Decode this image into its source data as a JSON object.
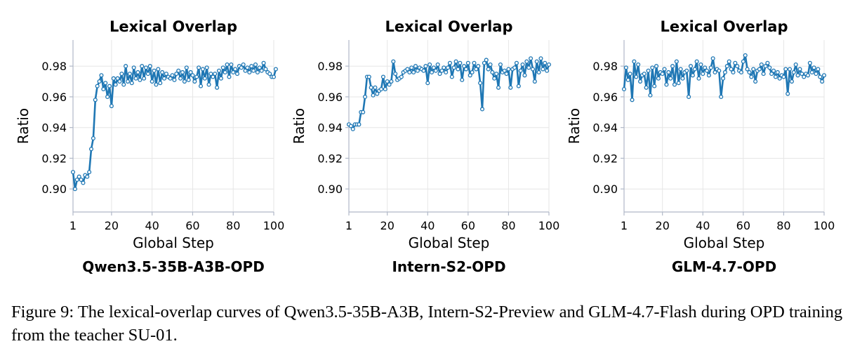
{
  "figure": {
    "caption": "Figure 9: The lexical-overlap curves of Qwen3.5-35B-A3B, Intern-S2-Preview and GLM-4.7-Flash during OPD training from the teacher SU-01."
  },
  "colors": {
    "line": "#1f77b4",
    "grid": "#e6e6e6",
    "spine": "#b0b8c8"
  },
  "chart_data": [
    {
      "type": "line",
      "title": "Lexical Overlap",
      "model_label": "Qwen3.5-35B-A3B-OPD",
      "xlabel": "Global Step",
      "ylabel": "Ratio",
      "xlim": [
        1,
        100
      ],
      "ylim": [
        0.885,
        0.997
      ],
      "xticks": [
        1,
        20,
        40,
        60,
        80,
        100
      ],
      "yticks": [
        0.9,
        0.92,
        0.94,
        0.96,
        0.98
      ],
      "grid": true,
      "marker": "circle",
      "series": [
        {
          "values": [
            0.911,
            0.9,
            0.906,
            0.908,
            0.906,
            0.904,
            0.909,
            0.908,
            0.911,
            0.926,
            0.933,
            0.958,
            0.967,
            0.97,
            0.974,
            0.965,
            0.969,
            0.96,
            0.967,
            0.954,
            0.972,
            0.968,
            0.972,
            0.97,
            0.975,
            0.968,
            0.98,
            0.97,
            0.975,
            0.969,
            0.979,
            0.972,
            0.976,
            0.971,
            0.98,
            0.972,
            0.979,
            0.975,
            0.98,
            0.97,
            0.977,
            0.968,
            0.978,
            0.969,
            0.976,
            0.972,
            0.975,
            0.973,
            0.972,
            0.974,
            0.971,
            0.975,
            0.977,
            0.972,
            0.976,
            0.97,
            0.979,
            0.971,
            0.976,
            0.974,
            0.97,
            0.973,
            0.979,
            0.967,
            0.978,
            0.972,
            0.979,
            0.968,
            0.975,
            0.973,
            0.975,
            0.966,
            0.977,
            0.972,
            0.979,
            0.976,
            0.981,
            0.973,
            0.981,
            0.976,
            0.978,
            0.975,
            0.98,
            0.979,
            0.981,
            0.977,
            0.979,
            0.976,
            0.98,
            0.977,
            0.981,
            0.976,
            0.979,
            0.977,
            0.982,
            0.978,
            0.976,
            0.975,
            0.973,
            0.973,
            0.978
          ]
        }
      ]
    },
    {
      "type": "line",
      "title": "Lexical Overlap",
      "model_label": "Intern-S2-OPD",
      "xlabel": "Global Step",
      "ylabel": "Ratio",
      "xlim": [
        1,
        100
      ],
      "ylim": [
        0.885,
        0.997
      ],
      "xticks": [
        1,
        20,
        40,
        60,
        80,
        100
      ],
      "yticks": [
        0.9,
        0.92,
        0.94,
        0.96,
        0.98
      ],
      "grid": true,
      "marker": "circle",
      "series": [
        {
          "values": [
            0.942,
            0.941,
            0.939,
            0.942,
            0.942,
            0.942,
            0.95,
            0.95,
            0.96,
            0.973,
            0.973,
            0.966,
            0.961,
            0.966,
            0.962,
            0.964,
            0.965,
            0.973,
            0.965,
            0.97,
            0.968,
            0.97,
            0.983,
            0.975,
            0.971,
            0.972,
            0.973,
            0.976,
            0.977,
            0.978,
            0.976,
            0.979,
            0.976,
            0.98,
            0.977,
            0.979,
            0.978,
            0.977,
            0.98,
            0.969,
            0.981,
            0.976,
            0.979,
            0.977,
            0.981,
            0.975,
            0.977,
            0.979,
            0.976,
            0.979,
            0.982,
            0.973,
            0.979,
            0.983,
            0.978,
            0.982,
            0.971,
            0.98,
            0.978,
            0.982,
            0.974,
            0.976,
            0.982,
            0.978,
            0.98,
            0.969,
            0.952,
            0.982,
            0.984,
            0.978,
            0.981,
            0.976,
            0.972,
            0.975,
            0.966,
            0.981,
            0.976,
            0.977,
            0.975,
            0.978,
            0.966,
            0.978,
            0.979,
            0.982,
            0.967,
            0.977,
            0.981,
            0.974,
            0.983,
            0.979,
            0.985,
            0.978,
            0.97,
            0.983,
            0.976,
            0.985,
            0.978,
            0.982,
            0.977,
            0.981
          ]
        }
      ]
    },
    {
      "type": "line",
      "title": "Lexical Overlap",
      "model_label": "GLM-4.7-OPD",
      "xlabel": "Global Step",
      "ylabel": "Ratio",
      "xlim": [
        1,
        100
      ],
      "ylim": [
        0.885,
        0.997
      ],
      "xticks": [
        1,
        20,
        40,
        60,
        80,
        100
      ],
      "yticks": [
        0.9,
        0.92,
        0.94,
        0.96,
        0.98
      ],
      "grid": true,
      "marker": "circle",
      "series": [
        {
          "values": [
            0.965,
            0.979,
            0.971,
            0.975,
            0.958,
            0.983,
            0.973,
            0.981,
            0.97,
            0.974,
            0.975,
            0.966,
            0.977,
            0.961,
            0.979,
            0.967,
            0.98,
            0.972,
            0.976,
            0.975,
            0.978,
            0.968,
            0.976,
            0.972,
            0.98,
            0.968,
            0.983,
            0.969,
            0.978,
            0.972,
            0.976,
            0.977,
            0.96,
            0.98,
            0.974,
            0.978,
            0.983,
            0.972,
            0.981,
            0.975,
            0.979,
            0.977,
            0.974,
            0.979,
            0.985,
            0.976,
            0.978,
            0.977,
            0.96,
            0.972,
            0.976,
            0.98,
            0.983,
            0.978,
            0.976,
            0.982,
            0.98,
            0.977,
            0.976,
            0.983,
            0.987,
            0.978,
            0.976,
            0.973,
            0.978,
            0.97,
            0.977,
            0.978,
            0.981,
            0.975,
            0.98,
            0.982,
            0.979,
            0.975,
            0.977,
            0.973,
            0.976,
            0.972,
            0.974,
            0.973,
            0.978,
            0.962,
            0.978,
            0.97,
            0.976,
            0.981,
            0.974,
            0.978,
            0.975,
            0.973,
            0.975,
            0.974,
            0.982,
            0.976,
            0.979,
            0.975,
            0.978,
            0.973,
            0.97,
            0.974
          ]
        }
      ]
    }
  ]
}
